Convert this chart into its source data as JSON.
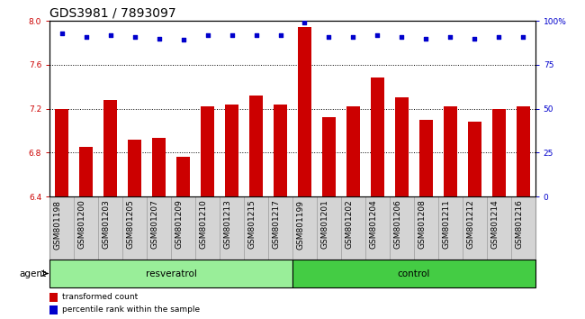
{
  "title": "GDS3981 / 7893097",
  "samples": [
    "GSM801198",
    "GSM801200",
    "GSM801203",
    "GSM801205",
    "GSM801207",
    "GSM801209",
    "GSM801210",
    "GSM801213",
    "GSM801215",
    "GSM801217",
    "GSM801199",
    "GSM801201",
    "GSM801202",
    "GSM801204",
    "GSM801206",
    "GSM801208",
    "GSM801211",
    "GSM801212",
    "GSM801214",
    "GSM801216"
  ],
  "bar_values": [
    7.2,
    6.85,
    7.28,
    6.92,
    6.93,
    6.76,
    7.22,
    7.24,
    7.32,
    7.24,
    7.94,
    7.12,
    7.22,
    7.48,
    7.3,
    7.1,
    7.22,
    7.08,
    7.2,
    7.22
  ],
  "percentile_values": [
    93,
    91,
    92,
    91,
    90,
    89,
    92,
    92,
    92,
    92,
    99,
    91,
    91,
    92,
    91,
    90,
    91,
    90,
    91,
    91
  ],
  "ylim_left": [
    6.4,
    8.0
  ],
  "ylim_right": [
    0,
    100
  ],
  "yticks_left": [
    6.4,
    6.8,
    7.2,
    7.6,
    8.0
  ],
  "yticks_right": [
    0,
    25,
    50,
    75,
    100
  ],
  "ytick_labels_right": [
    "0",
    "25",
    "50",
    "75",
    "100%"
  ],
  "bar_color": "#cc0000",
  "dot_color": "#0000cc",
  "group1_label": "resveratrol",
  "group2_label": "control",
  "group1_count": 10,
  "group2_count": 10,
  "group1_color": "#99ee99",
  "group2_color": "#44cc44",
  "agent_label": "agent",
  "legend1": "transformed count",
  "legend2": "percentile rank within the sample",
  "bg_color": "#ffffff",
  "bar_width": 0.55,
  "title_fontsize": 10,
  "tick_fontsize": 6.5,
  "label_fontsize": 7.5,
  "xtick_gray": "#d4d4d4",
  "xtick_gray_border": "#999999"
}
